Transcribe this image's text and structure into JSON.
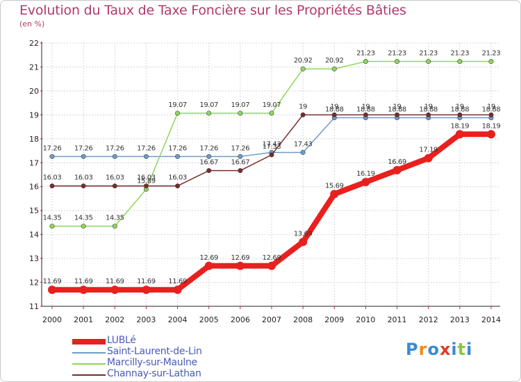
{
  "header": {
    "title": "Evolution du Taux de Taxe Foncière sur les Propriétés Bâties",
    "unit": "(en %)"
  },
  "logo": {
    "text": "Proxiti",
    "colors": [
      "#3b8bd0",
      "#f08c1a",
      "#3b8bd0",
      "#e03a2a",
      "#3b8bd0",
      "#8cc63f",
      "#3b8bd0"
    ]
  },
  "chart_data": {
    "type": "line",
    "title": "Evolution du Taux de Taxe Foncière sur les Propriétés Bâties",
    "ylabel": "(en %)",
    "xlabel": "",
    "x": [
      "2000",
      "2001",
      "2002",
      "2003",
      "2004",
      "2005",
      "2006",
      "2007",
      "2008",
      "2009",
      "2010",
      "2011",
      "2012",
      "2013",
      "2014"
    ],
    "ylim": [
      11,
      22
    ],
    "yticks": [
      11,
      12,
      13,
      14,
      15,
      16,
      17,
      18,
      19,
      20,
      21,
      22
    ],
    "grid": true,
    "legend": "bottom-left",
    "series": [
      {
        "name": "LUBLé",
        "color": "#e8201e",
        "width": 8,
        "values": [
          11.69,
          11.69,
          11.69,
          11.69,
          11.69,
          12.69,
          12.69,
          12.69,
          13.69,
          15.69,
          16.19,
          16.69,
          17.19,
          18.19,
          18.19
        ]
      },
      {
        "name": "Saint-Laurent-de-Lin",
        "color": "#6d9bc8",
        "width": 1.5,
        "values": [
          17.26,
          17.26,
          17.26,
          17.26,
          17.26,
          17.26,
          17.26,
          17.43,
          17.43,
          18.88,
          18.88,
          18.88,
          18.88,
          18.88,
          18.88
        ]
      },
      {
        "name": "Marcilly-sur-Maulne",
        "color": "#8fd65a",
        "width": 1.5,
        "values": [
          14.35,
          14.35,
          14.35,
          15.89,
          19.07,
          19.07,
          19.07,
          19.07,
          20.92,
          20.92,
          21.23,
          21.23,
          21.23,
          21.23,
          21.23
        ]
      },
      {
        "name": "Channay-sur-Lathan",
        "color": "#7a2a2e",
        "width": 1.5,
        "values": [
          16.03,
          16.03,
          16.03,
          16.03,
          16.03,
          16.67,
          16.67,
          17.33,
          19,
          19,
          19,
          19,
          19,
          19,
          19
        ]
      }
    ]
  }
}
